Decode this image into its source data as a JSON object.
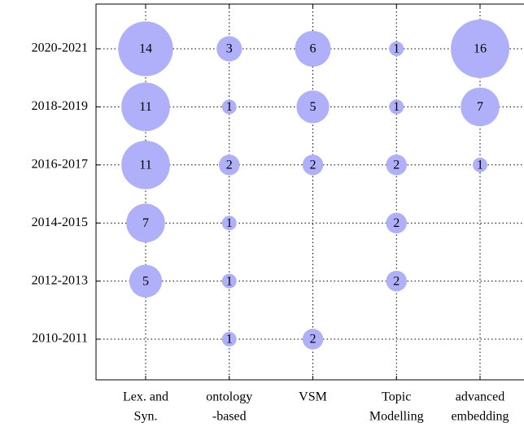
{
  "chart_data": {
    "type": "bubble",
    "categories": [
      [
        "Lex. and",
        "Syn."
      ],
      [
        "ontology",
        "-based"
      ],
      [
        "VSM"
      ],
      [
        "Topic",
        "Modelling"
      ],
      [
        "advanced",
        "embedding"
      ]
    ],
    "rows": [
      "2020-2021",
      "2018-2019",
      "2016-2017",
      "2014-2015",
      "2012-2013",
      "2010-2011"
    ],
    "values": [
      [
        14,
        3,
        6,
        1,
        16
      ],
      [
        11,
        1,
        5,
        1,
        7
      ],
      [
        11,
        2,
        2,
        2,
        1
      ],
      [
        7,
        1,
        null,
        2,
        null
      ],
      [
        5,
        1,
        null,
        2,
        null
      ],
      [
        null,
        1,
        2,
        null,
        null
      ]
    ],
    "color": "#b0b0fa",
    "grid": true
  }
}
